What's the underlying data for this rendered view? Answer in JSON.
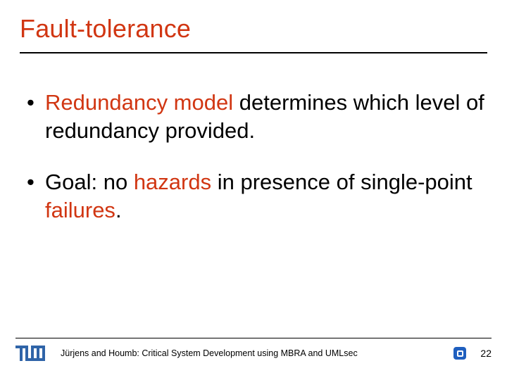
{
  "colors": {
    "accent_red": "#d13612",
    "tum_blue": "#2f64a8",
    "badge_bg": "#1f5fbf",
    "text": "#000000",
    "background": "#ffffff",
    "rule": "#000000"
  },
  "title": "Fault-tolerance",
  "title_fontsize": 36,
  "bullets": [
    {
      "segments": [
        {
          "text": "Redundancy model",
          "highlight": true
        },
        {
          "text": " determines which level of redundancy provided.",
          "highlight": false
        }
      ]
    },
    {
      "segments": [
        {
          "text": "Goal: no ",
          "highlight": false
        },
        {
          "text": "hazards",
          "highlight": true
        },
        {
          "text": " in presence of single-point ",
          "highlight": false
        },
        {
          "text": "failures",
          "highlight": true
        },
        {
          "text": ".",
          "highlight": false
        }
      ]
    }
  ],
  "body_fontsize": 31,
  "footer": {
    "text": "Jürjens and Houmb: Critical System Development using MBRA and UMLsec",
    "page_number": "22",
    "footer_fontsize": 12.5
  },
  "logos": {
    "left": "tum-logo",
    "right": "square-badge-icon"
  }
}
